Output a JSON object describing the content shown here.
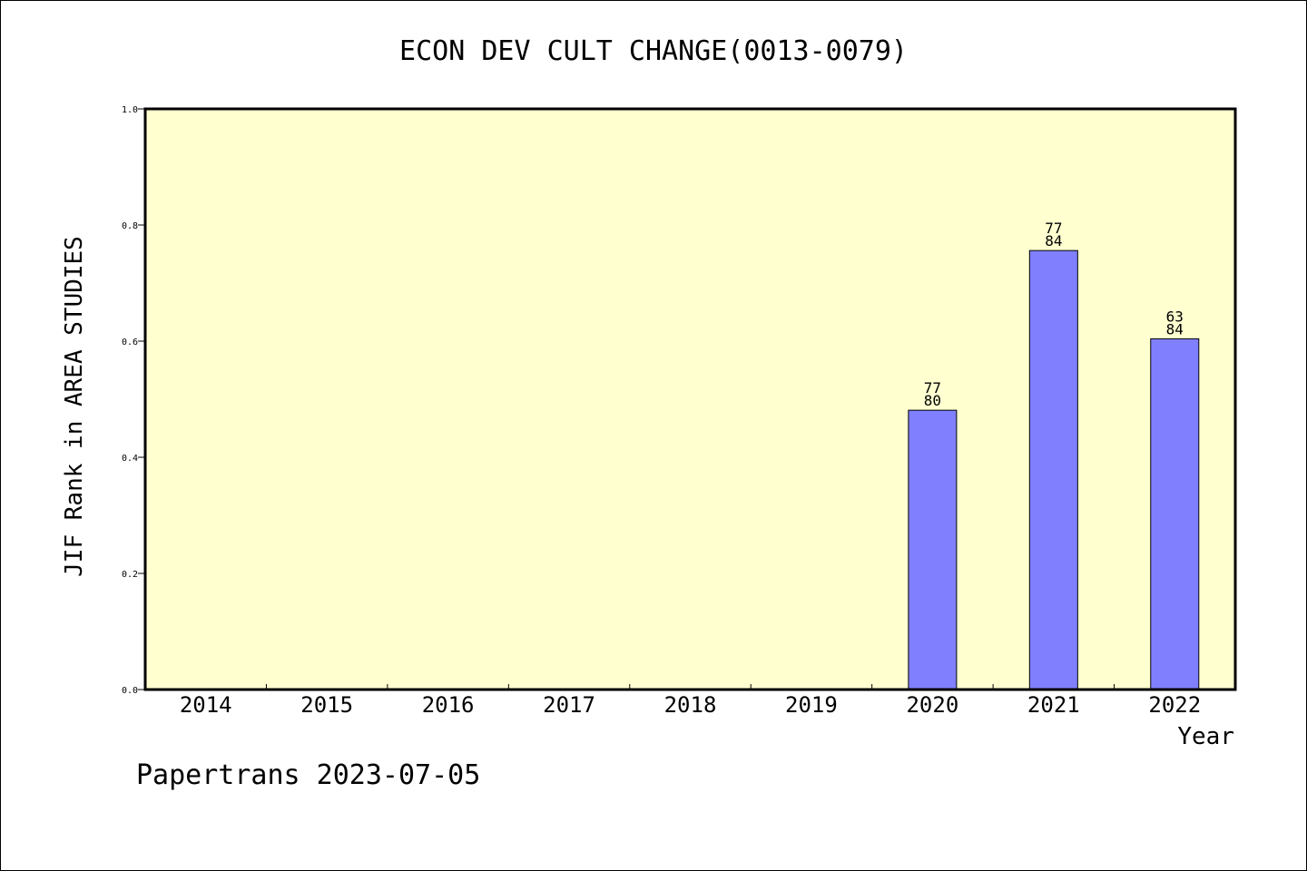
{
  "chart_data": {
    "type": "bar",
    "title": "ECON DEV CULT CHANGE(0013-0079)",
    "xlabel": "Year",
    "ylabel": "JIF Rank in AREA STUDIES",
    "categories": [
      "2014",
      "2015",
      "2016",
      "2017",
      "2018",
      "2019",
      "2020",
      "2021",
      "2022"
    ],
    "values": [
      null,
      null,
      null,
      null,
      null,
      null,
      0.481,
      0.756,
      0.604
    ],
    "bar_labels": [
      null,
      null,
      null,
      null,
      null,
      null,
      {
        "rank": "77",
        "total": "80"
      },
      {
        "rank": "77",
        "total": "84"
      },
      {
        "rank": "63",
        "total": "84"
      }
    ],
    "ylim": [
      0,
      1.0
    ],
    "yticks": [
      "0.0",
      "0.2",
      "0.4",
      "0.6",
      "0.8",
      "1.0"
    ],
    "grid": false,
    "colors": {
      "plot_background": "#ffffd0",
      "bar_fill": "#8080ff",
      "bar_stroke": "#000000"
    }
  },
  "footer": "Papertrans 2023-07-05"
}
